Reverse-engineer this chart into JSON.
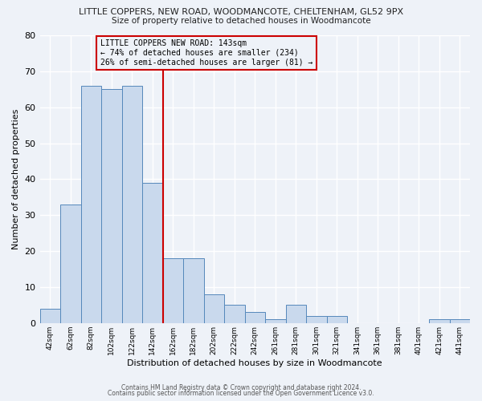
{
  "title": "LITTLE COPPERS, NEW ROAD, WOODMANCOTE, CHELTENHAM, GL52 9PX",
  "subtitle": "Size of property relative to detached houses in Woodmancote",
  "xlabel": "Distribution of detached houses by size in Woodmancote",
  "ylabel": "Number of detached properties",
  "bin_labels": [
    "42sqm",
    "62sqm",
    "82sqm",
    "102sqm",
    "122sqm",
    "142sqm",
    "162sqm",
    "182sqm",
    "202sqm",
    "222sqm",
    "242sqm",
    "261sqm",
    "281sqm",
    "301sqm",
    "321sqm",
    "341sqm",
    "361sqm",
    "381sqm",
    "401sqm",
    "421sqm",
    "441sqm"
  ],
  "bar_values": [
    4,
    33,
    66,
    65,
    66,
    39,
    18,
    18,
    8,
    5,
    3,
    1,
    5,
    2,
    2,
    0,
    0,
    0,
    0,
    1,
    1
  ],
  "bar_color": "#c9d9ed",
  "bar_edge_color": "#5588bb",
  "vline_color": "#cc0000",
  "ylim": [
    0,
    80
  ],
  "yticks": [
    0,
    10,
    20,
    30,
    40,
    50,
    60,
    70,
    80
  ],
  "annotation_title": "LITTLE COPPERS NEW ROAD: 143sqm",
  "annotation_line1": "← 74% of detached houses are smaller (234)",
  "annotation_line2": "26% of semi-detached houses are larger (81) →",
  "annotation_box_color": "#cc0000",
  "footer1": "Contains HM Land Registry data © Crown copyright and database right 2024.",
  "footer2": "Contains public sector information licensed under the Open Government Licence v3.0.",
  "bg_color": "#eef2f8",
  "plot_bg_color": "#eef2f8",
  "grid_color": "#ffffff"
}
